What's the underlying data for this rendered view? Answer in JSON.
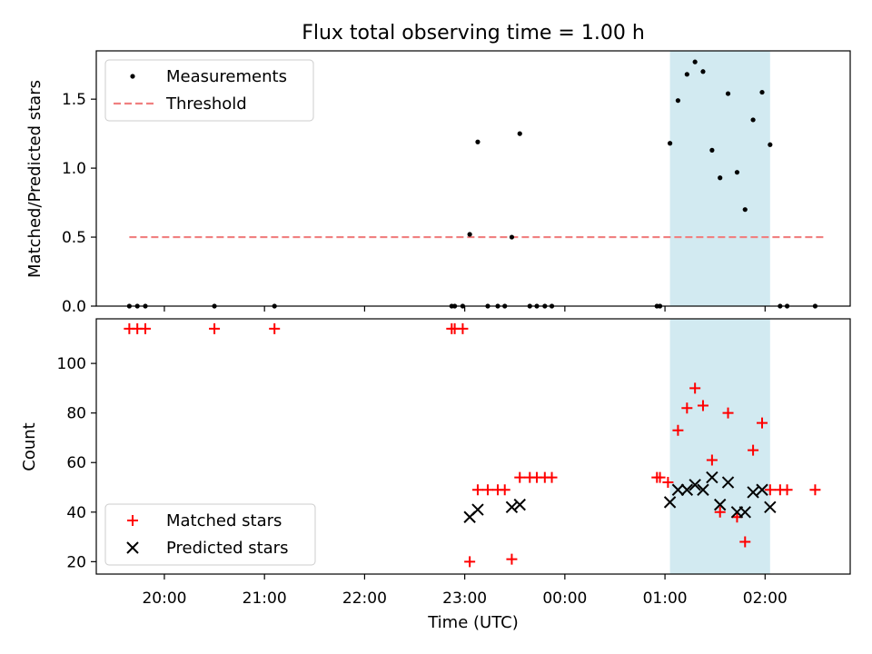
{
  "figure": {
    "title": "Flux total observing time = 1.00 h"
  },
  "chart_data": [
    {
      "panel": "top",
      "type": "scatter",
      "ylabel": "Matched/Predicted stars",
      "ylim": [
        0,
        1.85
      ],
      "yticks": [
        0.0,
        0.5,
        1.0,
        1.5
      ],
      "x_units": "hours after 19:00 UTC",
      "xlim": [
        0.32,
        7.85
      ],
      "shaded_interval": [
        6.05,
        7.05
      ],
      "shade_color": "#add8e6",
      "threshold": {
        "label": "Threshold",
        "y": 0.5,
        "x_range": [
          0.65,
          7.6
        ],
        "color": "#f08080"
      },
      "legend": {
        "position": "upper left",
        "entries": [
          "Measurements",
          "Threshold"
        ]
      },
      "series": [
        {
          "name": "Measurements",
          "color": "#000000",
          "points": [
            [
              0.65,
              0
            ],
            [
              0.73,
              0
            ],
            [
              0.81,
              0
            ],
            [
              1.5,
              0
            ],
            [
              2.1,
              0
            ],
            [
              3.87,
              0
            ],
            [
              3.9,
              0
            ],
            [
              3.98,
              0
            ],
            [
              4.05,
              0.52
            ],
            [
              4.13,
              1.19
            ],
            [
              4.23,
              0
            ],
            [
              4.33,
              0
            ],
            [
              4.4,
              0
            ],
            [
              4.47,
              0.5
            ],
            [
              4.55,
              1.25
            ],
            [
              4.65,
              0
            ],
            [
              4.72,
              0
            ],
            [
              4.8,
              0
            ],
            [
              4.87,
              0
            ],
            [
              5.92,
              0
            ],
            [
              5.95,
              0
            ],
            [
              6.05,
              1.18
            ],
            [
              6.13,
              1.49
            ],
            [
              6.22,
              1.68
            ],
            [
              6.3,
              1.77
            ],
            [
              6.38,
              1.7
            ],
            [
              6.47,
              1.13
            ],
            [
              6.55,
              0.93
            ],
            [
              6.63,
              1.54
            ],
            [
              6.72,
              0.97
            ],
            [
              6.8,
              0.7
            ],
            [
              6.88,
              1.35
            ],
            [
              6.97,
              1.55
            ],
            [
              7.05,
              1.17
            ],
            [
              7.15,
              0
            ],
            [
              7.22,
              0
            ],
            [
              7.5,
              0
            ]
          ]
        }
      ]
    },
    {
      "panel": "bottom",
      "type": "scatter",
      "ylabel": "Count",
      "xlabel": "Time (UTC)",
      "ylim": [
        15,
        118
      ],
      "yticks": [
        20,
        40,
        60,
        80,
        100
      ],
      "x_units": "hours after 19:00 UTC",
      "xlim": [
        0.32,
        7.85
      ],
      "xticks": [
        1,
        2,
        3,
        4,
        5,
        6,
        7
      ],
      "xticklabels": [
        "20:00",
        "21:00",
        "22:00",
        "23:00",
        "00:00",
        "01:00",
        "02:00"
      ],
      "shaded_interval": [
        6.05,
        7.05
      ],
      "shade_color": "#add8e6",
      "legend": {
        "position": "lower left",
        "entries": [
          "Matched stars",
          "Predicted stars"
        ]
      },
      "series": [
        {
          "name": "Matched stars",
          "marker": "plus",
          "color": "#ff0000",
          "points": [
            [
              0.65,
              114
            ],
            [
              0.73,
              114
            ],
            [
              0.81,
              114
            ],
            [
              1.5,
              114
            ],
            [
              2.1,
              114
            ],
            [
              3.87,
              114
            ],
            [
              3.9,
              114
            ],
            [
              3.98,
              114
            ],
            [
              4.05,
              20
            ],
            [
              4.13,
              49
            ],
            [
              4.23,
              49
            ],
            [
              4.33,
              49
            ],
            [
              4.4,
              49
            ],
            [
              4.47,
              21
            ],
            [
              4.55,
              54
            ],
            [
              4.65,
              54
            ],
            [
              4.72,
              54
            ],
            [
              4.8,
              54
            ],
            [
              4.87,
              54
            ],
            [
              5.92,
              54
            ],
            [
              5.95,
              54
            ],
            [
              6.03,
              52
            ],
            [
              6.13,
              73
            ],
            [
              6.22,
              82
            ],
            [
              6.3,
              90
            ],
            [
              6.38,
              83
            ],
            [
              6.47,
              61
            ],
            [
              6.55,
              40
            ],
            [
              6.63,
              80
            ],
            [
              6.72,
              38
            ],
            [
              6.8,
              28
            ],
            [
              6.88,
              65
            ],
            [
              6.97,
              76
            ],
            [
              7.05,
              49
            ],
            [
              7.15,
              49
            ],
            [
              7.22,
              49
            ],
            [
              7.5,
              49
            ]
          ]
        },
        {
          "name": "Predicted stars",
          "marker": "x",
          "color": "#000000",
          "points": [
            [
              4.05,
              38
            ],
            [
              4.13,
              41
            ],
            [
              4.47,
              42
            ],
            [
              4.55,
              43
            ],
            [
              6.05,
              44
            ],
            [
              6.13,
              49
            ],
            [
              6.22,
              49
            ],
            [
              6.3,
              51
            ],
            [
              6.38,
              49
            ],
            [
              6.47,
              54
            ],
            [
              6.55,
              43
            ],
            [
              6.63,
              52
            ],
            [
              6.72,
              40
            ],
            [
              6.8,
              40
            ],
            [
              6.88,
              48
            ],
            [
              6.97,
              49
            ],
            [
              7.05,
              42
            ]
          ]
        }
      ]
    }
  ]
}
